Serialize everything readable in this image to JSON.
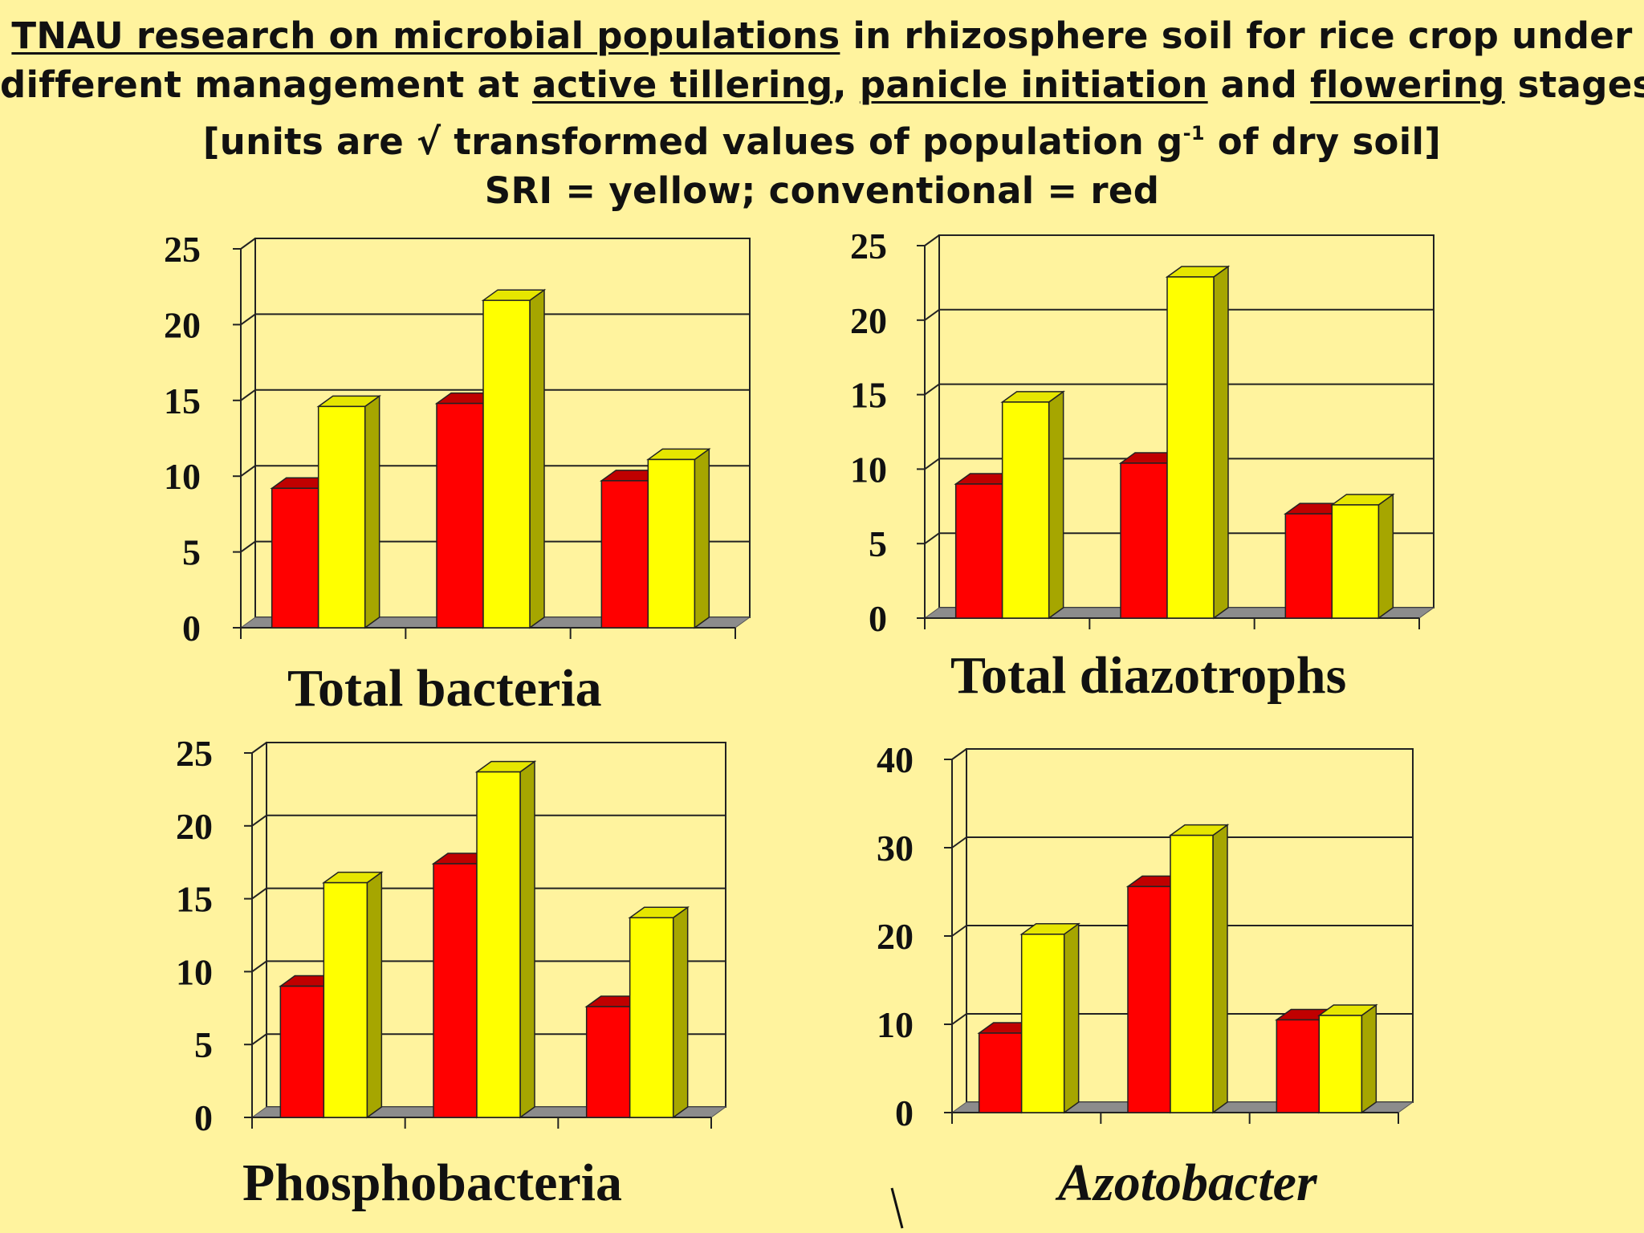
{
  "header": {
    "line1_part1": "TNAU research on microbial populations",
    "line1_part2": " in rhizosphere soil for rice crop under",
    "line2_part1": "different management at ",
    "line2_active": "active tillering",
    "line2_part2": ", ",
    "line2_panicle": "panicle initiation",
    "line2_part3": " and ",
    "line2_flowering": "flowering",
    "line2_part4": " stages",
    "line3_part1": "[units are √ transformed values of population g",
    "line3_sup": "-1",
    "line3_part2": " of dry soil]",
    "line4": "SRI = yellow; conventional = red"
  },
  "colors": {
    "background": "#FFF39E",
    "conventional": "#FF0000",
    "sri": "#FFFF00"
  },
  "chart_data": [
    {
      "type": "bar",
      "title": "Total bacteria",
      "categories": [
        "active tillering",
        "panicle initiation",
        "flowering"
      ],
      "series": [
        {
          "name": "conventional",
          "values": [
            9.2,
            14.8,
            9.7
          ]
        },
        {
          "name": "SRI",
          "values": [
            14.6,
            21.6,
            11.1
          ]
        }
      ],
      "ylim": [
        0,
        25
      ],
      "yticks": [
        "0",
        "5",
        "10",
        "15",
        "20",
        "25"
      ],
      "grid": true
    },
    {
      "type": "bar",
      "title": "Total diazotrophs",
      "categories": [
        "active tillering",
        "panicle initiation",
        "flowering"
      ],
      "series": [
        {
          "name": "conventional",
          "values": [
            9.0,
            10.4,
            7.0
          ]
        },
        {
          "name": "SRI",
          "values": [
            14.5,
            22.9,
            7.6
          ]
        }
      ],
      "ylim": [
        0,
        25
      ],
      "yticks": [
        "0",
        "5",
        "10",
        "15",
        "20",
        "25"
      ],
      "grid": true
    },
    {
      "type": "bar",
      "title": "Phosphobacteria",
      "categories": [
        "active tillering",
        "panicle initiation",
        "flowering"
      ],
      "series": [
        {
          "name": "conventional",
          "values": [
            9.0,
            17.4,
            7.6
          ]
        },
        {
          "name": "SRI",
          "values": [
            16.1,
            23.7,
            13.7
          ]
        }
      ],
      "ylim": [
        0,
        25
      ],
      "yticks": [
        "0",
        "5",
        "10",
        "15",
        "20",
        "25"
      ],
      "grid": true
    },
    {
      "type": "bar",
      "title": "Azotobacter",
      "categories": [
        "active tillering",
        "panicle initiation",
        "flowering"
      ],
      "series": [
        {
          "name": "conventional",
          "values": [
            9.0,
            25.6,
            10.5
          ]
        },
        {
          "name": "SRI",
          "values": [
            20.2,
            31.4,
            11.0
          ]
        }
      ],
      "ylim": [
        0,
        40
      ],
      "yticks": [
        "0",
        "10",
        "20",
        "30",
        "40"
      ],
      "grid": true
    }
  ]
}
